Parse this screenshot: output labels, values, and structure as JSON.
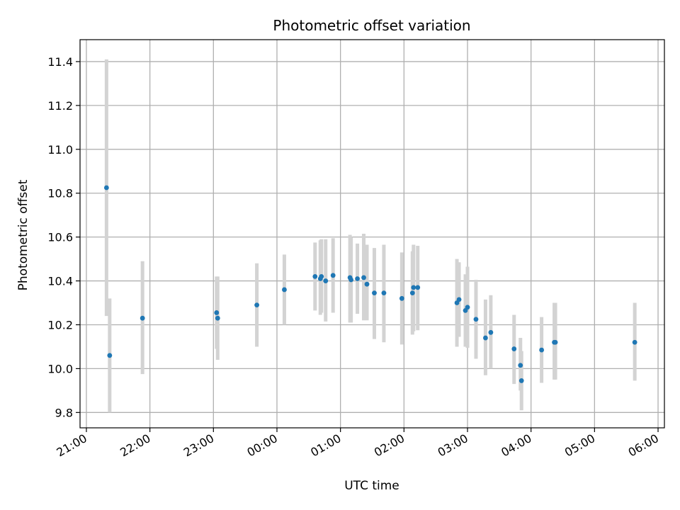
{
  "chart_data": {
    "type": "scatter",
    "title": "Photometric offset variation",
    "xlabel": "UTC time",
    "ylabel": "Photometric offset",
    "xlim_hours": [
      -3.1,
      6.1
    ],
    "ylim": [
      9.73,
      11.5
    ],
    "grid": true,
    "x_ticks": [
      {
        "h": -3,
        "label": "21:00"
      },
      {
        "h": -2,
        "label": "22:00"
      },
      {
        "h": -1,
        "label": "23:00"
      },
      {
        "h": 0,
        "label": "00:00"
      },
      {
        "h": 1,
        "label": "01:00"
      },
      {
        "h": 2,
        "label": "02:00"
      },
      {
        "h": 3,
        "label": "03:00"
      },
      {
        "h": 4,
        "label": "04:00"
      },
      {
        "h": 5,
        "label": "05:00"
      },
      {
        "h": 6,
        "label": "06:00"
      }
    ],
    "y_ticks": [
      9.8,
      10.0,
      10.2,
      10.4,
      10.6,
      10.8,
      11.0,
      11.2,
      11.4
    ],
    "y_tick_labels": [
      "9.8",
      "10.0",
      "10.2",
      "10.4",
      "10.6",
      "10.8",
      "11.0",
      "11.2",
      "11.4"
    ],
    "point_color": "#1f77b4",
    "errorbar_color": "#d3d3d3",
    "points": [
      {
        "t": "21:19",
        "y": 10.825,
        "lo": 10.24,
        "hi": 11.41
      },
      {
        "t": "21:22",
        "y": 10.06,
        "lo": 9.8,
        "hi": 10.32
      },
      {
        "t": "21:53",
        "y": 10.23,
        "lo": 9.975,
        "hi": 10.49
      },
      {
        "t": "23:03",
        "y": 10.255,
        "lo": 10.09,
        "hi": 10.42
      },
      {
        "t": "23:04",
        "y": 10.23,
        "lo": 10.04,
        "hi": 10.42
      },
      {
        "t": "23:41",
        "y": 10.29,
        "lo": 10.1,
        "hi": 10.48
      },
      {
        "t": "00:07",
        "y": 10.36,
        "lo": 10.2,
        "hi": 10.52
      },
      {
        "t": "00:36",
        "y": 10.42,
        "lo": 10.265,
        "hi": 10.575
      },
      {
        "t": "00:41",
        "y": 10.41,
        "lo": 10.245,
        "hi": 10.585
      },
      {
        "t": "00:42",
        "y": 10.42,
        "lo": 10.255,
        "hi": 10.59
      },
      {
        "t": "00:46",
        "y": 10.4,
        "lo": 10.215,
        "hi": 10.59
      },
      {
        "t": "00:53",
        "y": 10.425,
        "lo": 10.255,
        "hi": 10.595
      },
      {
        "t": "01:09",
        "y": 10.415,
        "lo": 10.21,
        "hi": 10.61
      },
      {
        "t": "01:10",
        "y": 10.405,
        "lo": 10.21,
        "hi": 10.6
      },
      {
        "t": "01:16",
        "y": 10.41,
        "lo": 10.25,
        "hi": 10.57
      },
      {
        "t": "01:22",
        "y": 10.415,
        "lo": 10.22,
        "hi": 10.615
      },
      {
        "t": "01:25",
        "y": 10.385,
        "lo": 10.22,
        "hi": 10.565
      },
      {
        "t": "01:32",
        "y": 10.345,
        "lo": 10.135,
        "hi": 10.55
      },
      {
        "t": "01:41",
        "y": 10.345,
        "lo": 10.12,
        "hi": 10.565
      },
      {
        "t": "01:58",
        "y": 10.32,
        "lo": 10.11,
        "hi": 10.53
      },
      {
        "t": "02:08",
        "y": 10.345,
        "lo": 10.155,
        "hi": 10.535
      },
      {
        "t": "02:09",
        "y": 10.37,
        "lo": 10.17,
        "hi": 10.565
      },
      {
        "t": "02:13",
        "y": 10.37,
        "lo": 10.175,
        "hi": 10.56
      },
      {
        "t": "02:50",
        "y": 10.3,
        "lo": 10.1,
        "hi": 10.5
      },
      {
        "t": "02:52",
        "y": 10.315,
        "lo": 10.145,
        "hi": 10.485
      },
      {
        "t": "02:58",
        "y": 10.265,
        "lo": 10.1,
        "hi": 10.43
      },
      {
        "t": "03:00",
        "y": 10.28,
        "lo": 10.095,
        "hi": 10.465
      },
      {
        "t": "03:08",
        "y": 10.225,
        "lo": 10.045,
        "hi": 10.405
      },
      {
        "t": "03:17",
        "y": 10.14,
        "lo": 9.97,
        "hi": 10.315
      },
      {
        "t": "03:22",
        "y": 10.165,
        "lo": 10.0,
        "hi": 10.335
      },
      {
        "t": "03:44",
        "y": 10.09,
        "lo": 9.93,
        "hi": 10.245
      },
      {
        "t": "03:50",
        "y": 10.015,
        "lo": 9.9,
        "hi": 10.14
      },
      {
        "t": "03:51",
        "y": 9.945,
        "lo": 9.81,
        "hi": 10.08
      },
      {
        "t": "04:10",
        "y": 10.085,
        "lo": 9.935,
        "hi": 10.235
      },
      {
        "t": "04:22",
        "y": 10.12,
        "lo": 9.95,
        "hi": 10.3
      },
      {
        "t": "04:23",
        "y": 10.12,
        "lo": 9.95,
        "hi": 10.3
      },
      {
        "t": "05:38",
        "y": 10.12,
        "lo": 9.945,
        "hi": 10.3
      }
    ]
  }
}
